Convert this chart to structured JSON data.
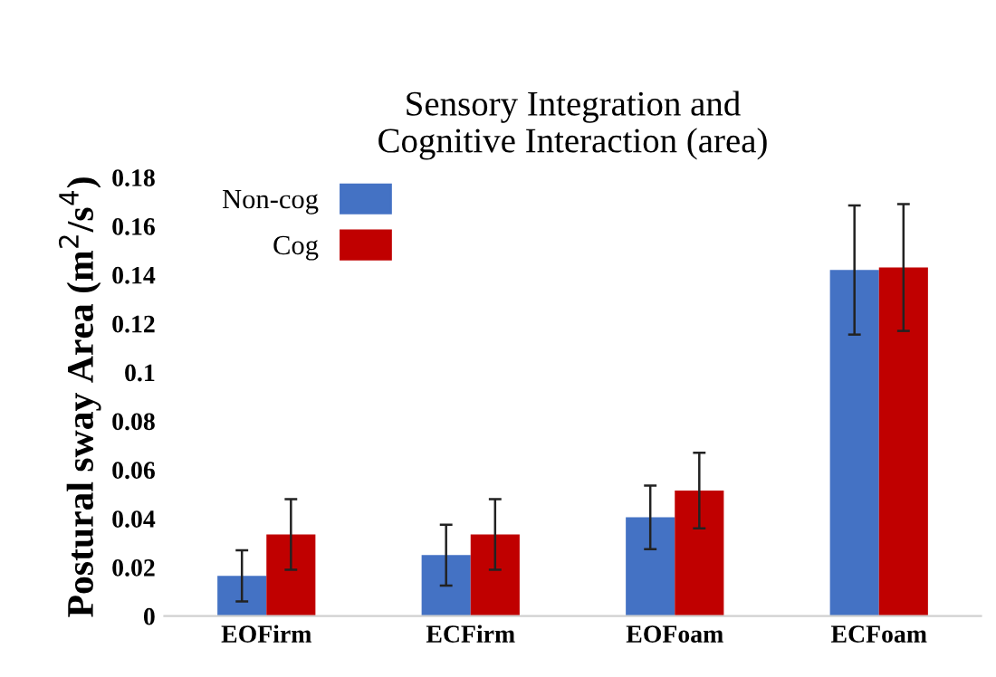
{
  "chart_data": {
    "type": "bar",
    "title": "Sensory Integration and\nCognitive Interaction (area)",
    "ylabel": "Postural sway Area (m$^{2}$/s$^{4}$)",
    "categories": [
      "EOFirm",
      "ECFirm",
      "EOFoam",
      "ECFoam"
    ],
    "series": [
      {
        "name": "Non-cog",
        "color": "#4472c4",
        "values": [
          0.0165,
          0.025,
          0.0405,
          0.142
        ],
        "errors": [
          0.0105,
          0.0125,
          0.013,
          0.0265
        ]
      },
      {
        "name": "Cog",
        "color": "#c00000",
        "values": [
          0.0335,
          0.0335,
          0.0515,
          0.143
        ],
        "errors": [
          0.0145,
          0.0145,
          0.0155,
          0.026
        ]
      }
    ],
    "ylim": [
      0,
      0.18
    ],
    "yticks": [
      {
        "value": 0,
        "label": "0"
      },
      0.02,
      0.04,
      0.06,
      0.08,
      {
        "value": 0.1,
        "label": "0.1"
      },
      0.12,
      0.14,
      0.16,
      0.18
    ],
    "grid": false,
    "legend": "top left"
  }
}
